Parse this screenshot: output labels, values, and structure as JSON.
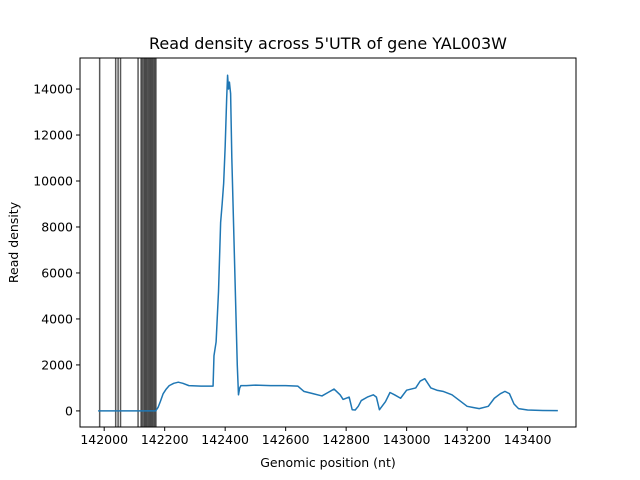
{
  "chart_data": {
    "type": "line",
    "title": "Read density across 5'UTR of gene YAL003W",
    "xlabel": "Genomic position (nt)",
    "ylabel": "Read density",
    "xlim": [
      141920,
      143560
    ],
    "ylim": [
      -700,
      15350
    ],
    "xticks": [
      142000,
      142200,
      142400,
      142600,
      142800,
      143000,
      143200,
      143400
    ],
    "yticks": [
      0,
      2000,
      4000,
      6000,
      8000,
      10000,
      12000,
      14000
    ],
    "grid": false,
    "legend": "none",
    "line_color": "#1f77b4",
    "vline_color": "#000000",
    "series": [
      {
        "x": [
          141980,
          142010,
          142050,
          142100,
          142170,
          142178,
          142186,
          142195,
          142205,
          142215,
          142230,
          142245,
          142260,
          142280,
          142320,
          142360,
          142363,
          142370,
          142378,
          142385,
          142390,
          142395,
          142400,
          142405,
          142408,
          142411,
          142414,
          142418,
          142422,
          142428,
          142434,
          142440,
          142444,
          142448,
          142452,
          142470,
          142500,
          142550,
          142600,
          142640,
          142660,
          142690,
          142720,
          142740,
          142760,
          142780,
          142790,
          142810,
          142820,
          142830,
          142840,
          142850,
          142870,
          142890,
          142900,
          142910,
          142930,
          142945,
          142960,
          142980,
          143000,
          143030,
          143045,
          143060,
          143080,
          143100,
          143120,
          143150,
          143180,
          143200,
          143220,
          143240,
          143270,
          143290,
          143310,
          143325,
          143340,
          143355,
          143370,
          143400,
          143450,
          143500
        ],
        "y": [
          0,
          0,
          0,
          0,
          0,
          150,
          420,
          750,
          950,
          1100,
          1200,
          1250,
          1200,
          1100,
          1080,
          1080,
          2400,
          3000,
          5200,
          8200,
          9000,
          9900,
          11500,
          13600,
          14600,
          14000,
          14300,
          13800,
          11000,
          8000,
          5000,
          2000,
          700,
          1000,
          1100,
          1100,
          1120,
          1100,
          1100,
          1080,
          850,
          750,
          650,
          800,
          950,
          700,
          500,
          600,
          50,
          40,
          200,
          450,
          600,
          700,
          600,
          50,
          400,
          800,
          700,
          550,
          900,
          1000,
          1300,
          1400,
          1000,
          900,
          850,
          700,
          400,
          200,
          150,
          100,
          200,
          550,
          750,
          850,
          750,
          300,
          100,
          40,
          20,
          10
        ]
      }
    ],
    "vlines": [
      141985,
      142038,
      142046,
      142054,
      142112,
      142122,
      142126,
      142131,
      142135,
      142139,
      142143,
      142147,
      142151,
      142155,
      142159,
      142163,
      142167,
      142171
    ]
  }
}
